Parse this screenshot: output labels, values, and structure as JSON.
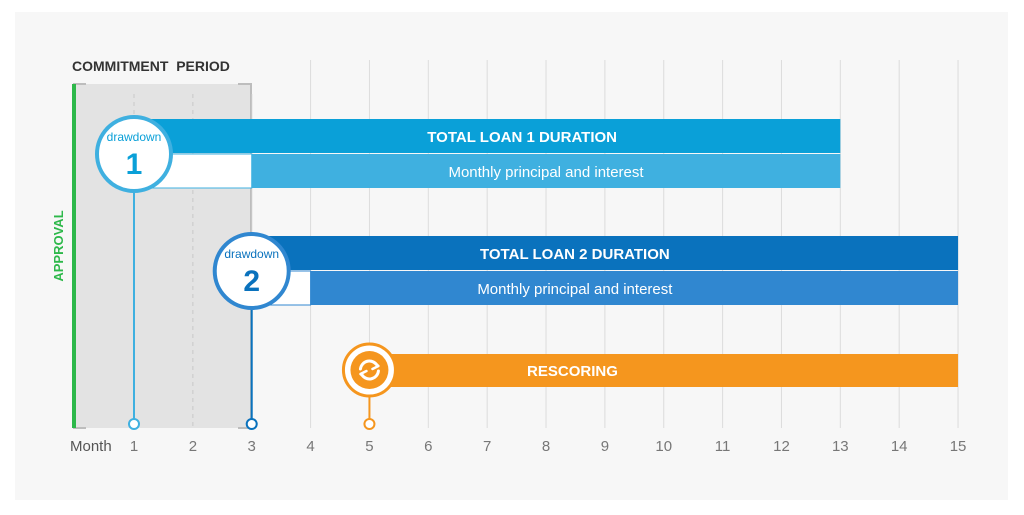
{
  "header": {
    "commitment_period": "COMMITMENT  PERIOD"
  },
  "side": {
    "approval": "APPROVAL"
  },
  "axis": {
    "label": "Month",
    "ticks": [
      "1",
      "2",
      "3",
      "4",
      "5",
      "6",
      "7",
      "8",
      "9",
      "10",
      "11",
      "12",
      "13",
      "14",
      "15"
    ]
  },
  "loans": [
    {
      "badge_word": "drawdown",
      "badge_number": "1",
      "total_label": "TOTAL LOAN 1 DURATION",
      "payment_label": "Monthly principal and interest",
      "start_month": 1,
      "payments_start_month": 3,
      "end_month": 13
    },
    {
      "badge_word": "drawdown",
      "badge_number": "2",
      "total_label": "TOTAL LOAN 2 DURATION",
      "payment_label": "Monthly principal and interest",
      "start_month": 3,
      "payments_start_month": 4,
      "end_month": 15
    }
  ],
  "rescoring": {
    "label": "RESCORING",
    "icon": "refresh-icon",
    "start_month": 5,
    "end_month": 15
  },
  "colors": {
    "loan1_dark": "#0aa0d8",
    "loan1_light": "#3fb0e0",
    "loan2_dark": "#0a72bd",
    "loan2_light": "#3087d0",
    "rescoring": "#f5961e",
    "approval": "#2db84a",
    "commitment_box": "#e3e3e3"
  }
}
